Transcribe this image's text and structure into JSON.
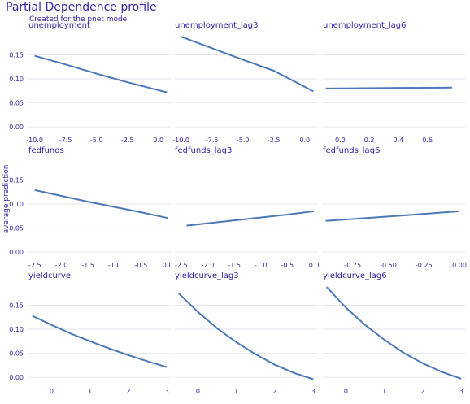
{
  "title": "Partial Dependence profile",
  "subtitle": "Created for the pnet model",
  "ylabel": "average prediction",
  "colors": {
    "line": "#4a78b8",
    "text": "#371ea3",
    "tick": "#371ea3",
    "grid": "#e6e6ec"
  },
  "chart_data": [
    {
      "type": "line",
      "title": "unemployment",
      "row": 0,
      "col": 0,
      "xticks": [
        -10.0,
        -7.5,
        -5.0,
        -2.5,
        0.0
      ],
      "xtick_labels": [
        "-10.0",
        "-7.5",
        "-5.0",
        "-2.5",
        "0.0"
      ],
      "xlim": [
        -10.5,
        1.0
      ],
      "yticks": [
        0.0,
        0.05,
        0.1,
        0.15
      ],
      "ytick_labels": [
        "0.00",
        "0.05",
        "0.10",
        "0.15"
      ],
      "ylim": [
        -0.01,
        0.2
      ],
      "x": [
        -10.0,
        -7.5,
        -5.0,
        -2.5,
        0.7
      ],
      "y": [
        0.148,
        0.13,
        0.111,
        0.093,
        0.072
      ]
    },
    {
      "type": "line",
      "title": "unemployment_lag3",
      "row": 0,
      "col": 1,
      "xticks": [
        -10.0,
        -7.5,
        -5.0,
        -2.5,
        0.0
      ],
      "xtick_labels": [
        "-10.0",
        "-7.5",
        "-5.0",
        "-2.5",
        "0.0"
      ],
      "xlim": [
        -10.5,
        1.0
      ],
      "yticks": [
        0.0,
        0.05,
        0.1,
        0.15
      ],
      "ytick_labels": [],
      "ylim": [
        -0.01,
        0.2
      ],
      "x": [
        -10.0,
        -7.5,
        -5.0,
        -2.5,
        0.7
      ],
      "y": [
        0.188,
        0.164,
        0.14,
        0.117,
        0.074
      ]
    },
    {
      "type": "line",
      "title": "unemployment_lag6",
      "row": 0,
      "col": 2,
      "xticks": [
        0.0,
        0.2,
        0.4,
        0.6
      ],
      "xtick_labels": [
        "0.0",
        "0.2",
        "0.4",
        "0.6"
      ],
      "xlim": [
        -0.12,
        0.86
      ],
      "yticks": [
        0.0,
        0.05,
        0.1,
        0.15
      ],
      "ytick_labels": [],
      "ylim": [
        -0.01,
        0.2
      ],
      "x": [
        -0.1,
        0.77
      ],
      "y": [
        0.08,
        0.082
      ]
    },
    {
      "type": "line",
      "title": "fedfunds",
      "row": 1,
      "col": 0,
      "xticks": [
        -2.5,
        -2.0,
        -1.5,
        -1.0,
        -0.5,
        0.0
      ],
      "xtick_labels": [
        "-2.5",
        "-2.0",
        "-1.5",
        "-1.0",
        "-0.5",
        "0.0"
      ],
      "xlim": [
        -2.62,
        0.06
      ],
      "yticks": [
        0.0,
        0.05,
        0.1,
        0.15
      ],
      "ytick_labels": [
        "0.00",
        "0.05",
        "0.10",
        "0.15"
      ],
      "ylim": [
        -0.01,
        0.2
      ],
      "x": [
        -2.5,
        -1.5,
        -0.5,
        0.0
      ],
      "y": [
        0.129,
        0.105,
        0.083,
        0.071
      ]
    },
    {
      "type": "line",
      "title": "fedfunds_lag3",
      "row": 1,
      "col": 1,
      "xticks": [
        -2.5,
        -2.0,
        -1.5,
        -1.0,
        -0.5,
        0.0
      ],
      "xtick_labels": [
        "-2.5",
        "-2.0",
        "-1.5",
        "-1.0",
        "-0.5",
        "0.0"
      ],
      "xlim": [
        -2.62,
        0.06
      ],
      "yticks": [
        0.0,
        0.05,
        0.1,
        0.15
      ],
      "ytick_labels": [],
      "ylim": [
        -0.01,
        0.2
      ],
      "x": [
        -2.4,
        -1.5,
        -0.5,
        0.0
      ],
      "y": [
        0.055,
        0.066,
        0.078,
        0.085
      ]
    },
    {
      "type": "line",
      "title": "fedfunds_lag6",
      "row": 1,
      "col": 2,
      "xticks": [
        -0.75,
        -0.5,
        -0.25,
        0.0
      ],
      "xtick_labels": [
        "-0.75",
        "-0.50",
        "-0.25",
        "0.00"
      ],
      "xlim": [
        -0.96,
        0.04
      ],
      "yticks": [
        0.0,
        0.05,
        0.1,
        0.15
      ],
      "ytick_labels": [],
      "ylim": [
        -0.01,
        0.2
      ],
      "x": [
        -0.94,
        -0.5,
        0.0
      ],
      "y": [
        0.065,
        0.074,
        0.085
      ]
    },
    {
      "type": "line",
      "title": "yieldcurve",
      "row": 2,
      "col": 0,
      "xticks": [
        0,
        1,
        2,
        3
      ],
      "xtick_labels": [
        "0",
        "1",
        "2",
        "3"
      ],
      "xlim": [
        -0.6,
        3.1
      ],
      "yticks": [
        0.0,
        0.05,
        0.1,
        0.15
      ],
      "ytick_labels": [
        "0.00",
        "0.05",
        "0.10",
        "0.15"
      ],
      "ylim": [
        -0.01,
        0.2
      ],
      "x": [
        -0.5,
        0.0,
        0.5,
        1.0,
        1.5,
        2.0,
        2.5,
        3.0
      ],
      "y": [
        0.128,
        0.109,
        0.091,
        0.075,
        0.06,
        0.046,
        0.033,
        0.021
      ]
    },
    {
      "type": "line",
      "title": "yieldcurve_lag3",
      "row": 2,
      "col": 1,
      "xticks": [
        0,
        1,
        2,
        3
      ],
      "xtick_labels": [
        "0",
        "1",
        "2",
        "3"
      ],
      "xlim": [
        -0.6,
        3.1
      ],
      "yticks": [
        0.0,
        0.05,
        0.1,
        0.15
      ],
      "ytick_labels": [],
      "ylim": [
        -0.01,
        0.2
      ],
      "x": [
        -0.5,
        0.0,
        0.5,
        1.0,
        1.5,
        2.0,
        2.5,
        3.0
      ],
      "y": [
        0.175,
        0.136,
        0.102,
        0.073,
        0.048,
        0.026,
        0.009,
        -0.004
      ]
    },
    {
      "type": "line",
      "title": "yieldcurve_lag6",
      "row": 2,
      "col": 2,
      "xticks": [
        0,
        1,
        2,
        3
      ],
      "xtick_labels": [
        "0",
        "1",
        "2",
        "3"
      ],
      "xlim": [
        -0.6,
        3.1
      ],
      "yticks": [
        0.0,
        0.05,
        0.1,
        0.15
      ],
      "ytick_labels": [],
      "ylim": [
        -0.01,
        0.2
      ],
      "x": [
        -0.5,
        0.0,
        0.5,
        1.0,
        1.5,
        2.0,
        2.5,
        3.0
      ],
      "y": [
        0.188,
        0.145,
        0.109,
        0.078,
        0.051,
        0.029,
        0.011,
        -0.003
      ]
    }
  ]
}
